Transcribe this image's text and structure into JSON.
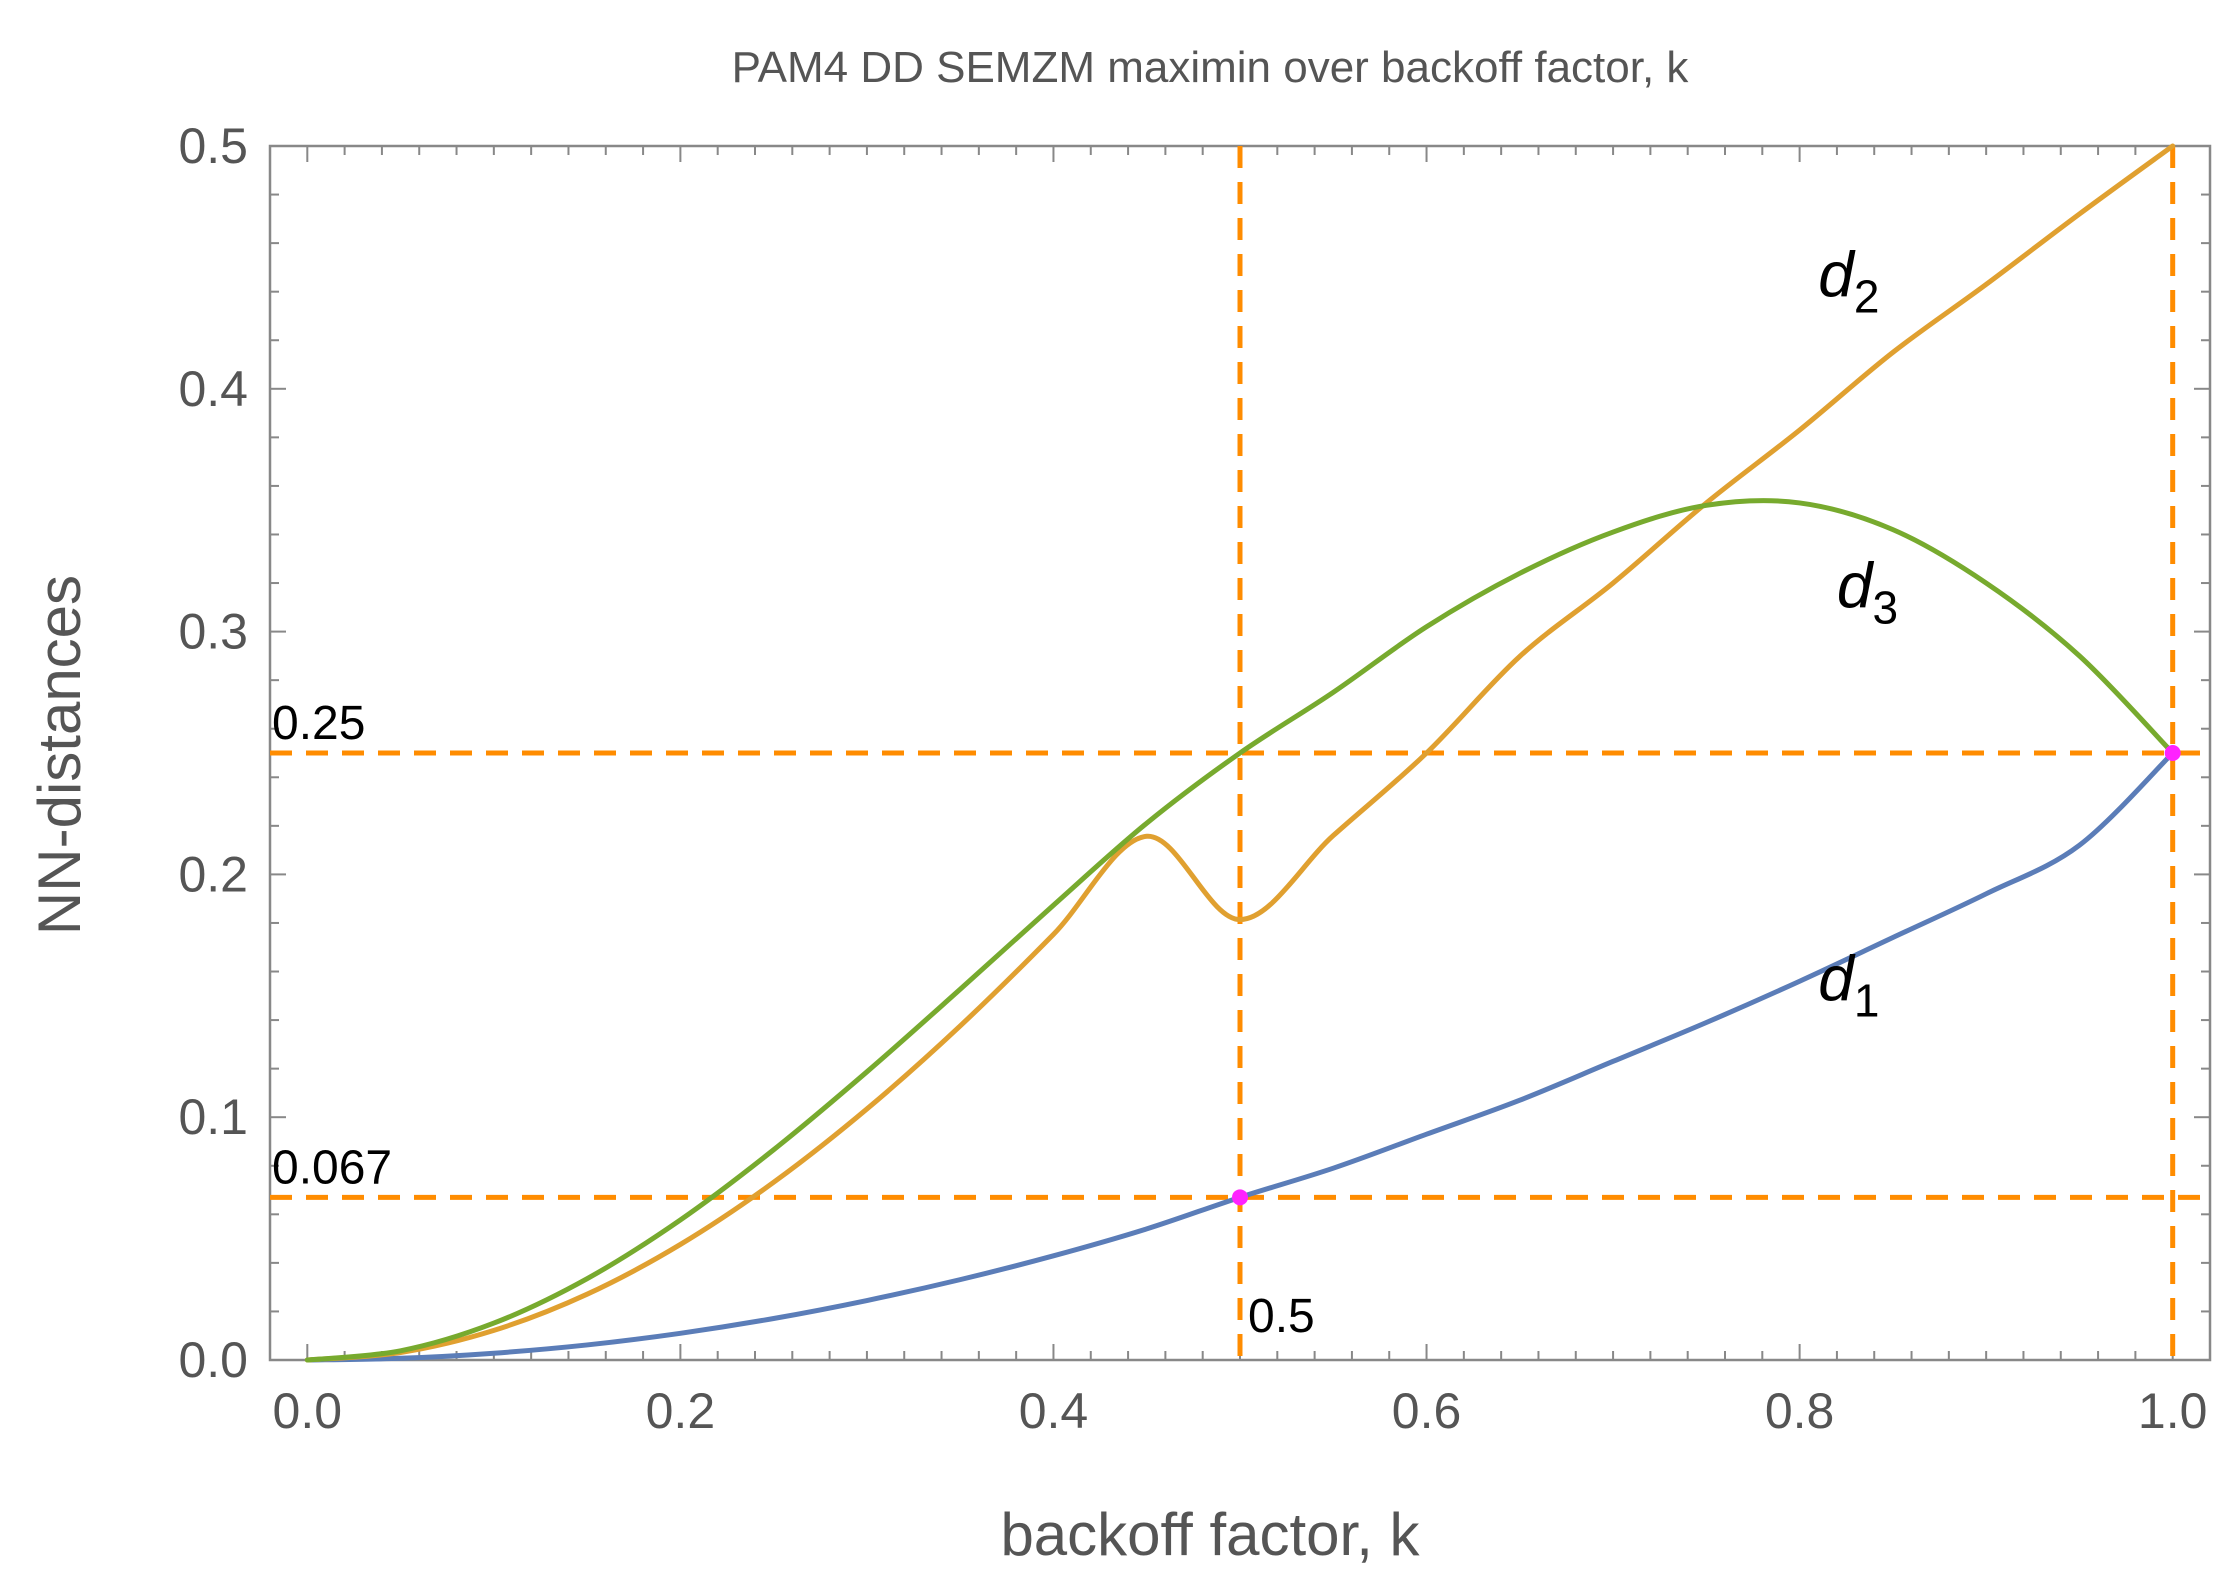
{
  "chart_data": {
    "type": "line",
    "title": "PAM4 DD SEMZM maximin over backoff factor, k",
    "xlabel": "backoff factor, k",
    "ylabel": "NN-distances",
    "xlim": [
      -0.02,
      1.02
    ],
    "ylim": [
      0.0,
      0.5
    ],
    "xticks": [
      0.0,
      0.2,
      0.4,
      0.6,
      0.8,
      1.0
    ],
    "xtick_labels": [
      "0.0",
      "0.2",
      "0.4",
      "0.6",
      "0.8",
      "1.0"
    ],
    "yticks": [
      0.0,
      0.1,
      0.2,
      0.3,
      0.4,
      0.5
    ],
    "ytick_labels": [
      "0.0",
      "0.1",
      "0.2",
      "0.3",
      "0.4",
      "0.5"
    ],
    "grid": false,
    "series": [
      {
        "name": "d1",
        "label": "d",
        "label_sub": "1",
        "color": "#5b7db8",
        "label_at": [
          0.81,
          0.148
        ],
        "x": [
          0.0,
          0.05,
          0.1,
          0.15,
          0.2,
          0.25,
          0.3,
          0.35,
          0.4,
          0.45,
          0.5,
          0.55,
          0.6,
          0.65,
          0.7,
          0.75,
          0.8,
          0.85,
          0.9,
          0.95,
          1.0
        ],
        "y": [
          0.0,
          0.0007,
          0.0028,
          0.0062,
          0.011,
          0.0171,
          0.0245,
          0.0331,
          0.0429,
          0.054,
          0.067,
          0.079,
          0.093,
          0.107,
          0.123,
          0.139,
          0.156,
          0.174,
          0.192,
          0.212,
          0.25
        ]
      },
      {
        "name": "d2",
        "label": "d",
        "label_sub": "2",
        "color": "#e0a030",
        "label_at": [
          0.81,
          0.438
        ],
        "x": [
          0.0,
          0.05,
          0.1,
          0.15,
          0.2,
          0.25,
          0.3,
          0.35,
          0.4,
          0.45,
          0.5,
          0.55,
          0.6,
          0.65,
          0.7,
          0.75,
          0.8,
          0.85,
          0.9,
          0.95,
          1.0
        ],
        "y": [
          0.0,
          0.0031,
          0.0122,
          0.0271,
          0.0476,
          0.0732,
          0.1034,
          0.1376,
          0.1753,
          0.2157,
          0.1814,
          0.216,
          0.25,
          0.2898,
          0.32,
          0.353,
          0.383,
          0.415,
          0.443,
          0.472,
          0.5
        ]
      },
      {
        "name": "d3",
        "label": "d",
        "label_sub": "3",
        "color": "#77aa2e",
        "label_at": [
          0.82,
          0.31
        ],
        "x": [
          0.0,
          0.05,
          0.1,
          0.15,
          0.2,
          0.25,
          0.3,
          0.35,
          0.4,
          0.45,
          0.5,
          0.55,
          0.6,
          0.65,
          0.7,
          0.75,
          0.8,
          0.85,
          0.9,
          0.95,
          1.0
        ],
        "y": [
          0.0,
          0.0038,
          0.0152,
          0.0335,
          0.0577,
          0.0866,
          0.1187,
          0.1527,
          0.1873,
          0.2211,
          0.25,
          0.275,
          0.302,
          0.324,
          0.341,
          0.352,
          0.353,
          0.342,
          0.32,
          0.29,
          0.25
        ]
      }
    ],
    "reference_lines": [
      {
        "orientation": "horizontal",
        "value": 0.25,
        "label": "0.25",
        "color": "#ff8c00"
      },
      {
        "orientation": "horizontal",
        "value": 0.067,
        "label": "0.067",
        "color": "#ff8c00"
      },
      {
        "orientation": "vertical",
        "value": 0.5,
        "label": "0.5",
        "color": "#ff8c00"
      },
      {
        "orientation": "vertical",
        "value": 1.0,
        "label": "",
        "color": "#ff8c00"
      }
    ],
    "highlight_points": [
      {
        "x": 0.5,
        "y": 0.067,
        "color": "#ff22ff"
      },
      {
        "x": 1.0,
        "y": 0.25,
        "color": "#ff22ff"
      }
    ]
  }
}
